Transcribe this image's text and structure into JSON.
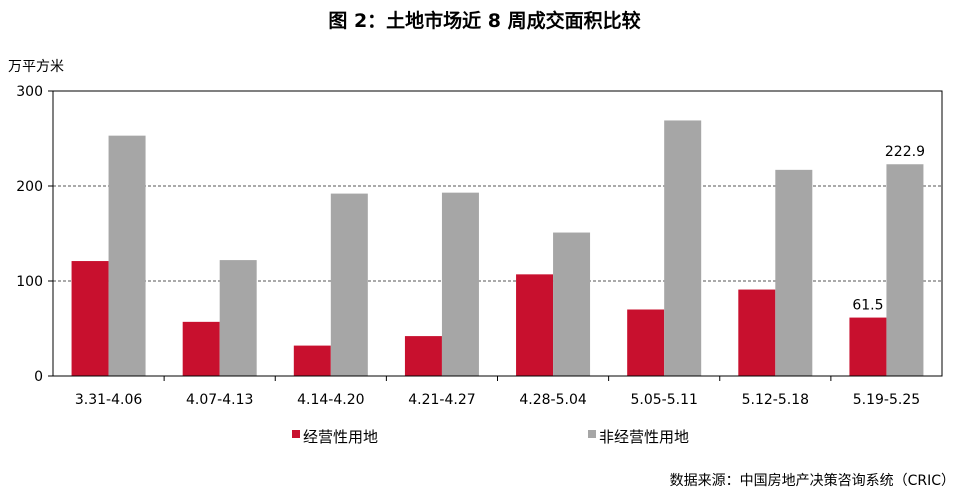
{
  "title": "图 2：土地市场近 8 周成交面积比较",
  "unit_label": "万平方米",
  "source": "数据来源：中国房地产决策咨询系统（CRIC）",
  "chart_data": {
    "type": "bar",
    "categories": [
      "3.31-4.06",
      "4.07-4.13",
      "4.14-4.20",
      "4.21-4.27",
      "4.28-5.04",
      "5.05-5.11",
      "5.12-5.18",
      "5.19-5.25"
    ],
    "series": [
      {
        "name": "经营性用地",
        "color": "#C8102E",
        "values": [
          121,
          57,
          32,
          42,
          107,
          70,
          91,
          61.5
        ]
      },
      {
        "name": "非经营性用地",
        "color": "#A6A6A6",
        "values": [
          253,
          122,
          192,
          193,
          151,
          269,
          217,
          222.9
        ]
      }
    ],
    "data_labels": [
      {
        "series": 0,
        "index": 7,
        "text": "61.5"
      },
      {
        "series": 1,
        "index": 7,
        "text": "222.9"
      }
    ],
    "ylim": [
      0,
      300
    ],
    "yticks": [
      0,
      100,
      200,
      300
    ],
    "ytick_labels": [
      "0",
      "100",
      "200",
      "300"
    ],
    "grid": "horizontal dashed",
    "legend_position": "bottom"
  }
}
